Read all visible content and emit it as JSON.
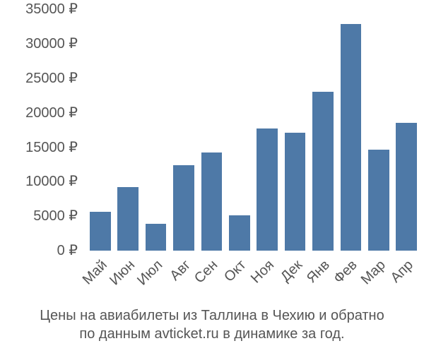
{
  "chart_data": {
    "type": "bar",
    "title": "Цены на авиабилеты из Таллина в Чехию и обратно по данным avticket.ru в динамике за год.",
    "title_lines": [
      "Цены на авиабилеты из Таллина в Чехию и обратно",
      "по данным avticket.ru в динамике за год."
    ],
    "xlabel": "",
    "ylabel": "",
    "categories": [
      "Май",
      "Июн",
      "Июл",
      "Авг",
      "Сен",
      "Окт",
      "Ноя",
      "Дек",
      "Янв",
      "Фев",
      "Мар",
      "Апр"
    ],
    "values": [
      5600,
      9200,
      3900,
      12400,
      14250,
      5100,
      17700,
      17100,
      23100,
      32900,
      14650,
      18550
    ],
    "ylim": [
      0,
      35000
    ],
    "yticks": [
      0,
      5000,
      10000,
      15000,
      20000,
      25000,
      30000,
      35000
    ],
    "ytick_labels": [
      "0 ₽",
      "5000 ₽",
      "10000 ₽",
      "15000 ₽",
      "20000 ₽",
      "25000 ₽",
      "30000 ₽",
      "35000 ₽"
    ],
    "grid": false,
    "legend": null,
    "colors": {
      "bar": "#4e79a7",
      "text": "#555555",
      "background": "#ffffff"
    }
  }
}
